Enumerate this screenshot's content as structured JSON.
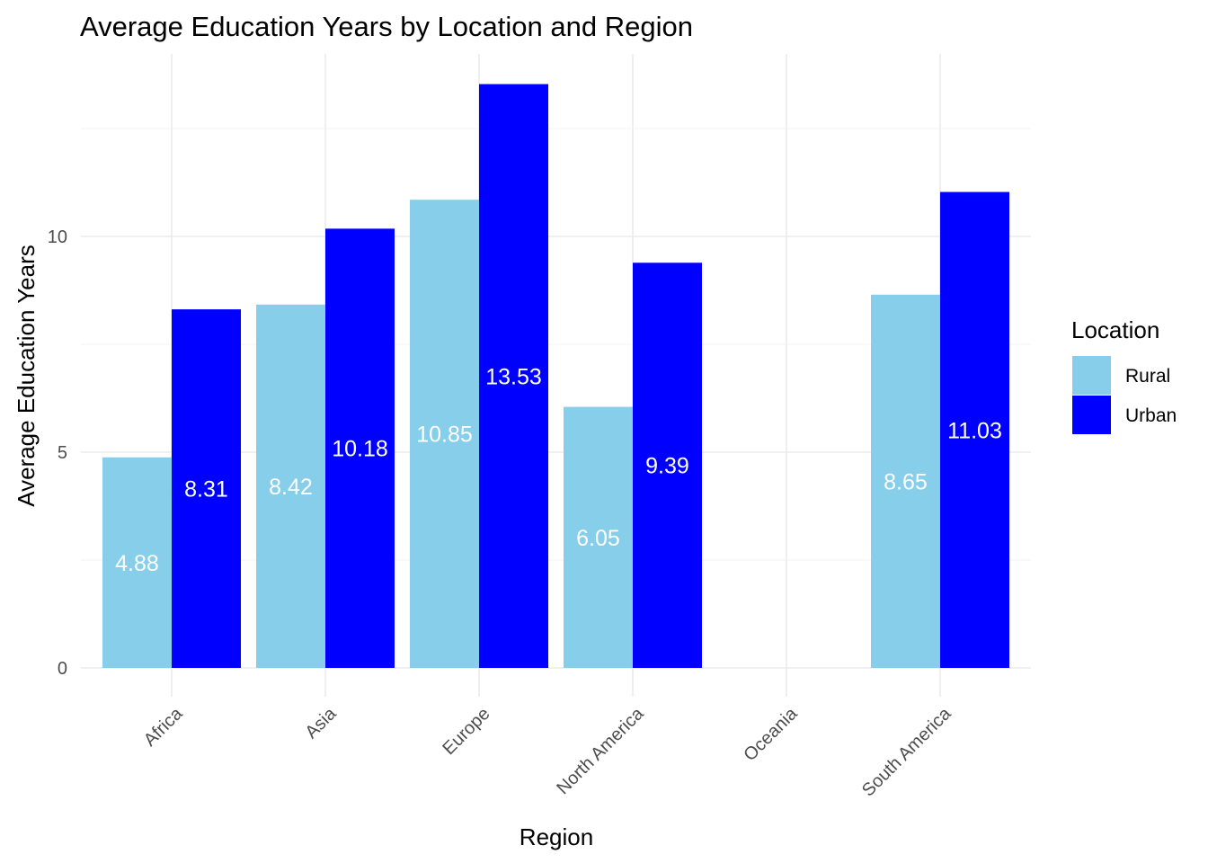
{
  "chart_data": {
    "type": "bar",
    "title": "Average Education Years by Location and Region",
    "xlabel": "Region",
    "ylabel": "Average Education Years",
    "categories": [
      "Africa",
      "Asia",
      "Europe",
      "North America",
      "Oceania",
      "South America"
    ],
    "series": [
      {
        "name": "Rural",
        "color": "#87CEEB",
        "values": [
          4.88,
          8.42,
          10.85,
          6.05,
          null,
          8.65
        ]
      },
      {
        "name": "Urban",
        "color": "#0000FF",
        "values": [
          8.31,
          10.18,
          13.53,
          9.39,
          null,
          11.03
        ]
      }
    ],
    "ylim": [
      0,
      14
    ],
    "yticks": [
      0,
      5,
      10
    ],
    "grid": true,
    "legend": {
      "title": "Location",
      "position": "right"
    }
  }
}
